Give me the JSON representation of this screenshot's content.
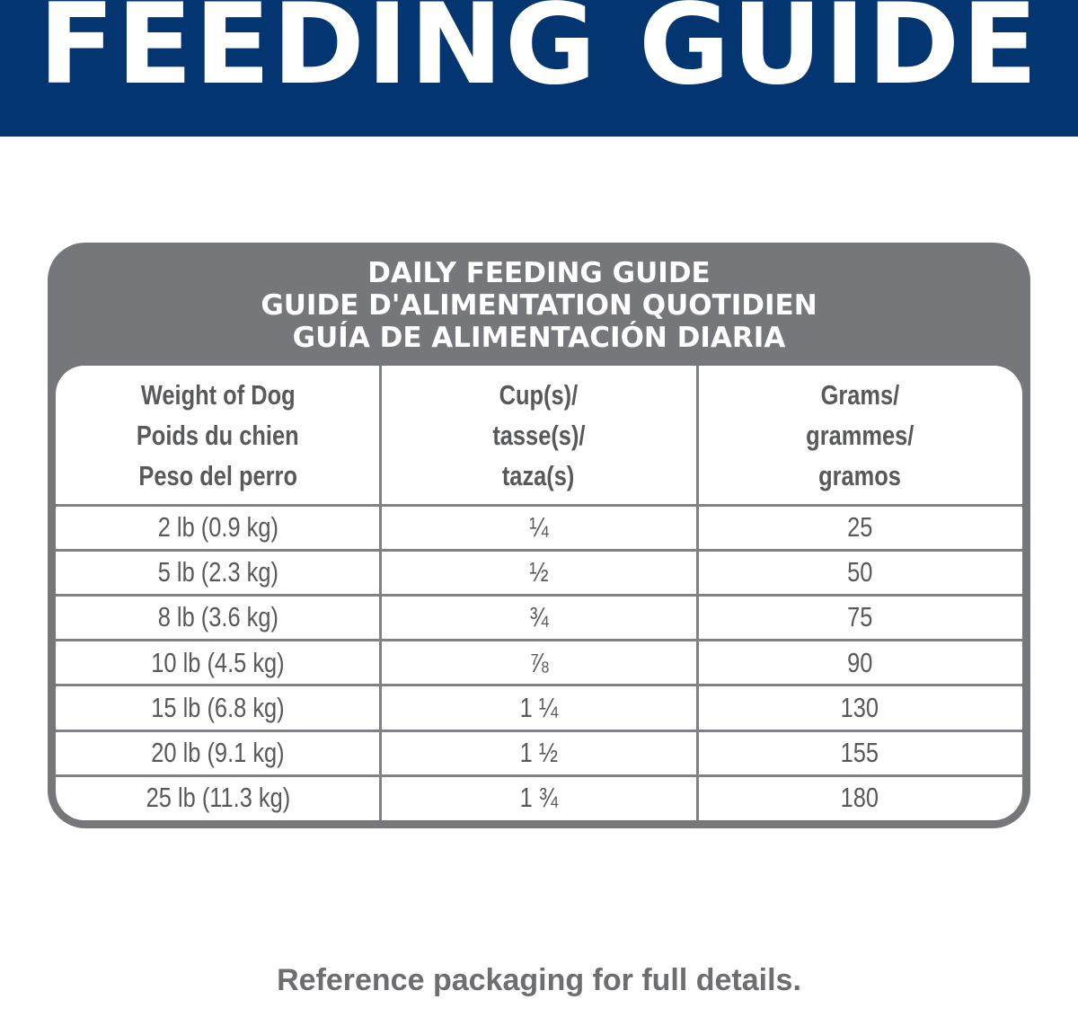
{
  "header": {
    "title": "FEEDING GUIDE"
  },
  "table": {
    "title_lines": [
      "DAILY FEEDING GUIDE",
      "GUIDE D'ALIMENTATION QUOTIDIEN",
      "GUÍA DE ALIMENTACIÓN DIARIA"
    ],
    "columns": [
      [
        "Weight of Dog",
        "Poids du chien",
        "Peso del perro"
      ],
      [
        "Cup(s)/",
        "tasse(s)/",
        "taza(s)"
      ],
      [
        "Grams/",
        "grammes/",
        "gramos"
      ]
    ],
    "rows": [
      [
        "2 lb (0.9 kg)",
        "¼",
        "25"
      ],
      [
        "5 lb (2.3 kg)",
        "½",
        "50"
      ],
      [
        "8 lb (3.6 kg)",
        "¾",
        "75"
      ],
      [
        "10 lb (4.5 kg)",
        "⅞",
        "90"
      ],
      [
        "15 lb (6.8 kg)",
        "1 ¼",
        "130"
      ],
      [
        "20 lb (9.1 kg)",
        "1 ½",
        "155"
      ],
      [
        "25 lb (11.3 kg)",
        "1 ¾",
        "180"
      ]
    ]
  },
  "footer": {
    "note": "Reference packaging for full details."
  }
}
